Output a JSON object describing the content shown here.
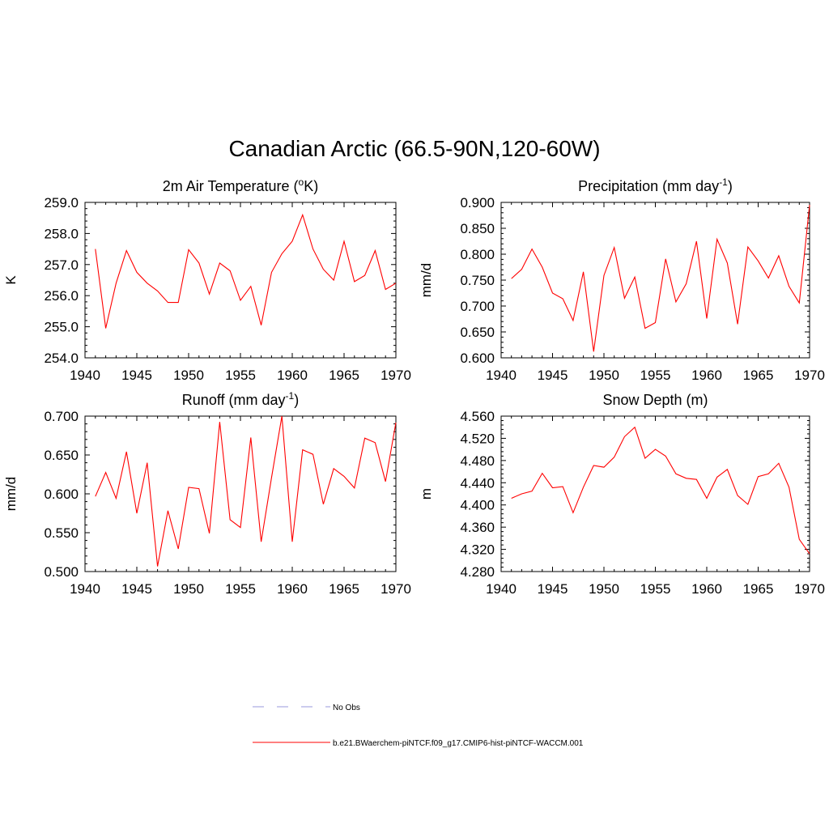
{
  "title": "Canadian Arctic (66.5-90N,120-60W)",
  "legend": [
    {
      "label": "No Obs",
      "color": "#9999dd",
      "dash": true
    },
    {
      "label": "b.e21.BWaerchem-piNTCF.f09_g17.CMIP6-hist-piNTCF-WACCM.001",
      "color": "#ff0000",
      "dash": false
    }
  ],
  "chart_data": [
    {
      "type": "line",
      "title_main": "2m Air Temperature (",
      "title_sup_pre": "o",
      "title_tail": "K)",
      "ylabel": "K",
      "xlim": [
        1940,
        1970
      ],
      "ylim": [
        254.0,
        259.0
      ],
      "xticks": [
        "1940",
        "1945",
        "1950",
        "1955",
        "1960",
        "1965",
        "1970"
      ],
      "yticks": [
        "254.0",
        "255.0",
        "256.0",
        "257.0",
        "258.0",
        "259.0"
      ],
      "series": [
        {
          "color": "#ff0000",
          "x": [
            1941,
            1942,
            1943,
            1944,
            1945,
            1946,
            1947,
            1948,
            1949,
            1950,
            1951,
            1952,
            1953,
            1954,
            1955,
            1956,
            1957,
            1958,
            1959,
            1960,
            1961,
            1962,
            1963,
            1964,
            1965,
            1966,
            1967,
            1968,
            1969,
            1970
          ],
          "values": [
            257.5,
            254.95,
            256.4,
            257.45,
            256.75,
            256.4,
            256.15,
            255.78,
            255.78,
            257.48,
            257.05,
            256.05,
            257.05,
            256.8,
            255.85,
            256.3,
            255.05,
            256.75,
            257.35,
            257.75,
            258.6,
            257.5,
            256.85,
            256.5,
            257.75,
            256.45,
            256.65,
            257.45,
            256.2,
            256.4
          ]
        }
      ]
    },
    {
      "type": "line",
      "title_main": "Precipitation (mm day",
      "title_sup_post": "-1",
      "title_tail": ")",
      "ylabel": "mm/d",
      "xlim": [
        1940,
        1970
      ],
      "ylim": [
        0.6,
        0.9
      ],
      "xticks": [
        "1940",
        "1945",
        "1950",
        "1955",
        "1960",
        "1965",
        "1970"
      ],
      "yticks": [
        "0.600",
        "0.650",
        "0.700",
        "0.750",
        "0.800",
        "0.850",
        "0.900"
      ],
      "series": [
        {
          "color": "#ff0000",
          "x": [
            1941,
            1942,
            1943,
            1944,
            1945,
            1946,
            1947,
            1948,
            1949,
            1950,
            1951,
            1952,
            1953,
            1954,
            1955,
            1956,
            1957,
            1958,
            1959,
            1960,
            1961,
            1962,
            1963,
            1964,
            1965,
            1966,
            1967,
            1968,
            1969,
            1970
          ],
          "values": [
            0.753,
            0.771,
            0.81,
            0.775,
            0.725,
            0.714,
            0.672,
            0.766,
            0.612,
            0.759,
            0.813,
            0.715,
            0.756,
            0.657,
            0.668,
            0.791,
            0.708,
            0.743,
            0.825,
            0.676,
            0.829,
            0.783,
            0.665,
            0.814,
            0.787,
            0.754,
            0.797,
            0.738,
            0.706,
            0.895
          ]
        }
      ]
    },
    {
      "type": "line",
      "title_main": "Runoff (mm day",
      "title_sup_post": "-1",
      "title_tail": ")",
      "ylabel": "mm/d",
      "xlim": [
        1940,
        1970
      ],
      "ylim": [
        0.48,
        0.72
      ],
      "xticks": [
        "1940",
        "1945",
        "1950",
        "1955",
        "1960",
        "1965",
        "1970"
      ],
      "yticks": [
        "0.500",
        "0.550",
        "0.600",
        "0.650",
        "0.700"
      ],
      "series": [
        {
          "color": "#ff0000",
          "x": [
            1941,
            1942,
            1943,
            1944,
            1945,
            1946,
            1947,
            1948,
            1949,
            1950,
            1951,
            1952,
            1953,
            1954,
            1955,
            1956,
            1957,
            1958,
            1959,
            1960,
            1961,
            1962,
            1963,
            1964,
            1965,
            1966,
            1967,
            1968,
            1969,
            1970
          ],
          "values": [
            0.596,
            0.633,
            0.593,
            0.665,
            0.57,
            0.648,
            0.488,
            0.574,
            0.515,
            0.61,
            0.608,
            0.539,
            0.711,
            0.56,
            0.548,
            0.687,
            0.526,
            0.625,
            0.72,
            0.526,
            0.668,
            0.661,
            0.584,
            0.639,
            0.627,
            0.609,
            0.686,
            0.679,
            0.619,
            0.71
          ]
        }
      ]
    },
    {
      "type": "line",
      "title_main": "Snow Depth (m)",
      "ylabel": "m",
      "xlim": [
        1940,
        1970
      ],
      "ylim": [
        4.28,
        4.56
      ],
      "xticks": [
        "1940",
        "1945",
        "1950",
        "1955",
        "1960",
        "1965",
        "1970"
      ],
      "yticks": [
        "4.280",
        "4.320",
        "4.360",
        "4.400",
        "4.440",
        "4.480",
        "4.520",
        "4.560"
      ],
      "series": [
        {
          "color": "#ff0000",
          "x": [
            1941,
            1942,
            1943,
            1944,
            1945,
            1946,
            1947,
            1948,
            1949,
            1950,
            1951,
            1952,
            1953,
            1954,
            1955,
            1956,
            1957,
            1958,
            1959,
            1960,
            1961,
            1962,
            1963,
            1964,
            1965,
            1966,
            1967,
            1968,
            1969,
            1970
          ],
          "values": [
            4.412,
            4.42,
            4.425,
            4.457,
            4.431,
            4.433,
            4.386,
            4.432,
            4.471,
            4.468,
            4.486,
            4.523,
            4.54,
            4.484,
            4.5,
            4.488,
            4.456,
            4.448,
            4.446,
            4.412,
            4.45,
            4.464,
            4.417,
            4.401,
            4.451,
            4.456,
            4.475,
            4.432,
            4.338,
            4.312
          ]
        }
      ]
    }
  ]
}
